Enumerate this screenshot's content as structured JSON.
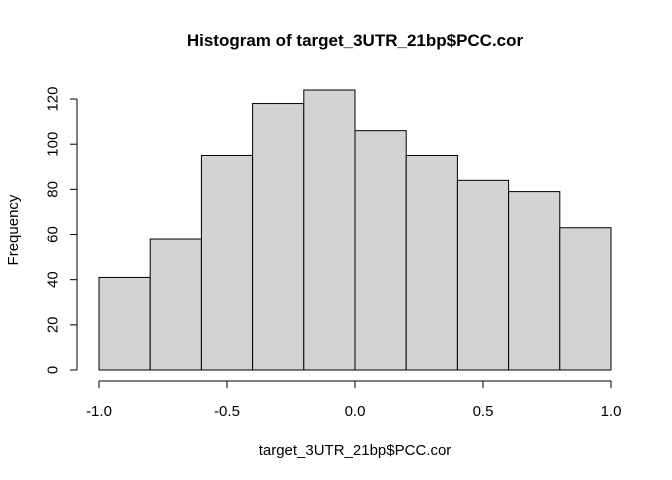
{
  "chart_data": {
    "type": "bar",
    "title": "Histogram of target_3UTR_21bp$PCC.cor",
    "xlabel": "target_3UTR_21bp$PCC.cor",
    "ylabel": "Frequency",
    "bins": [
      {
        "start": -1.0,
        "end": -0.8,
        "count": 41
      },
      {
        "start": -0.8,
        "end": -0.6,
        "count": 58
      },
      {
        "start": -0.6,
        "end": -0.4,
        "count": 95
      },
      {
        "start": -0.4,
        "end": -0.2,
        "count": 118
      },
      {
        "start": -0.2,
        "end": 0.0,
        "count": 124
      },
      {
        "start": 0.0,
        "end": 0.2,
        "count": 106
      },
      {
        "start": 0.2,
        "end": 0.4,
        "count": 95
      },
      {
        "start": 0.4,
        "end": 0.6,
        "count": 84
      },
      {
        "start": 0.6,
        "end": 0.8,
        "count": 79
      },
      {
        "start": 0.8,
        "end": 1.0,
        "count": 63
      }
    ],
    "xlim": [
      -1.0,
      1.0
    ],
    "ylim": [
      0,
      124
    ],
    "x_ticks": [
      -1.0,
      -0.5,
      0.0,
      0.5,
      1.0
    ],
    "x_tick_labels": [
      "-1.0",
      "-0.5",
      "0.0",
      "0.5",
      "1.0"
    ],
    "y_ticks": [
      0,
      20,
      40,
      60,
      80,
      100,
      120
    ],
    "y_tick_labels": [
      "0",
      "20",
      "40",
      "60",
      "80",
      "100",
      "120"
    ],
    "bar_color": "#d3d3d3",
    "grid": false,
    "legend": "none"
  }
}
